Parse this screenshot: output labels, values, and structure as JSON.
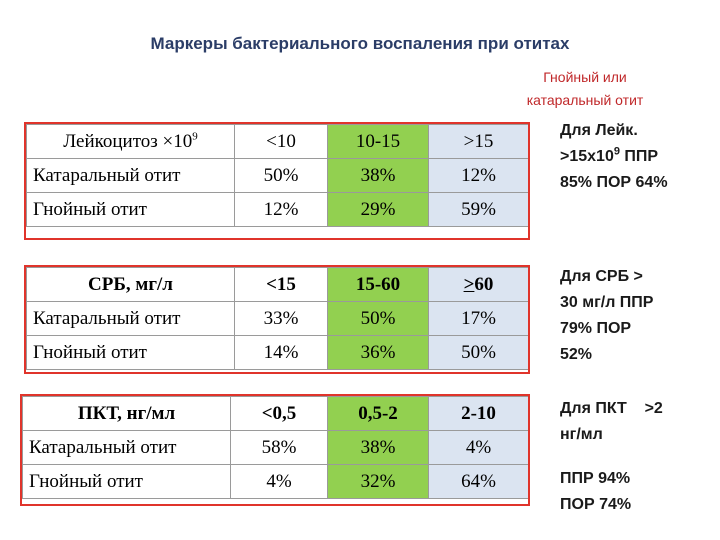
{
  "title": "Маркеры бактериального воспаления при отитах",
  "note": {
    "line1": "Гнойный или",
    "line2": "катаральный отит"
  },
  "tables": [
    {
      "header": {
        "label_pre": "Лейкоцитоз ×10",
        "label_sup": "9",
        "cols": [
          "<10",
          "10-15",
          ">15"
        ]
      },
      "rows": [
        {
          "label": "Катаральный отит",
          "values": [
            "50%",
            "38%",
            "12%"
          ]
        },
        {
          "label": "Гнойный отит",
          "values": [
            "12%",
            "29%",
            "59%"
          ]
        }
      ]
    },
    {
      "header": {
        "label": "СРБ, мг/л",
        "cols": [
          "<15",
          "15-60",
          "60"
        ],
        "col3_prefix": ">"
      },
      "rows": [
        {
          "label": "Катаральный отит",
          "values": [
            "33%",
            "50%",
            "17%"
          ]
        },
        {
          "label": "Гнойный отит",
          "values": [
            "14%",
            "36%",
            "50%"
          ]
        }
      ]
    },
    {
      "header": {
        "label": "ПКТ, нг/мл",
        "cols": [
          "<0,5",
          "0,5-2",
          "2-10"
        ]
      },
      "rows": [
        {
          "label": "Катаральный отит",
          "values": [
            "58%",
            "38%",
            "4%"
          ]
        },
        {
          "label": "Гнойный отит",
          "values": [
            "4%",
            "32%",
            "64%"
          ]
        }
      ]
    }
  ],
  "side_notes": {
    "leuk": {
      "line1": "Для Лейк.",
      "line2_pre": ">15x10",
      "line2_sup": "9",
      "line2_post": " ППР",
      "line3": "85% ПОР 64%"
    },
    "crp": {
      "line1": "Для СРБ >",
      "line2": "30 мг/л ППР",
      "line3": "79% ПОР",
      "line4": "52%"
    },
    "pct": {
      "line1": "Для ПКТ    >2",
      "line2": "нг/мл",
      "line3": "ППР 94%",
      "line4": "ПОР 74%"
    }
  },
  "colors": {
    "title": "#2b3d67",
    "note": "#c0282a",
    "frame": "#e0342b",
    "green": "#92d050",
    "blue": "#dbe4f1"
  }
}
